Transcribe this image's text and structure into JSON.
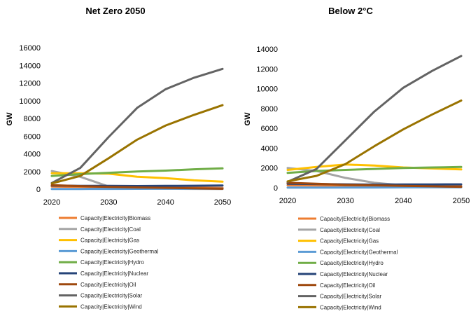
{
  "chart_data": [
    {
      "type": "line",
      "title": "Net Zero 2050",
      "xlabel": "",
      "ylabel": "GW",
      "x": [
        2020,
        2025,
        2030,
        2035,
        2040,
        2045,
        2050
      ],
      "x_ticks": [
        "2020",
        "2030",
        "2040",
        "2050"
      ],
      "ylim": [
        0,
        16000
      ],
      "y_ticks": [
        "0",
        "2000",
        "4000",
        "6000",
        "8000",
        "10000",
        "12000",
        "14000",
        "16000"
      ],
      "grid": false,
      "legend_position": "bottom",
      "series": [
        {
          "name": "Capacity|Electricity|Biomass",
          "color": "#ED7D31",
          "values": [
            300,
            250,
            200,
            180,
            170,
            160,
            150
          ]
        },
        {
          "name": "Capacity|Electricity|Coal",
          "color": "#A5A5A5",
          "values": [
            2050,
            1400,
            300,
            100,
            50,
            30,
            20
          ]
        },
        {
          "name": "Capacity|Electricity|Gas",
          "color": "#FFC000",
          "values": [
            1800,
            1800,
            1750,
            1400,
            1250,
            1000,
            850
          ]
        },
        {
          "name": "Capacity|Electricity|Geothermal",
          "color": "#5B9BD5",
          "values": [
            15,
            20,
            30,
            40,
            50,
            60,
            70
          ]
        },
        {
          "name": "Capacity|Electricity|Hydro",
          "color": "#70AD47",
          "values": [
            1500,
            1700,
            1850,
            2000,
            2100,
            2250,
            2350
          ]
        },
        {
          "name": "Capacity|Electricity|Nuclear",
          "color": "#264478",
          "values": [
            400,
            380,
            370,
            360,
            370,
            390,
            410
          ]
        },
        {
          "name": "Capacity|Electricity|Oil",
          "color": "#9E480E",
          "values": [
            450,
            350,
            250,
            200,
            150,
            100,
            50
          ]
        },
        {
          "name": "Capacity|Electricity|Solar",
          "color": "#636363",
          "values": [
            700,
            2400,
            5900,
            9200,
            11300,
            12600,
            13600
          ]
        },
        {
          "name": "Capacity|Electricity|Wind",
          "color": "#997300",
          "values": [
            650,
            1500,
            3500,
            5600,
            7200,
            8400,
            9500
          ]
        }
      ]
    },
    {
      "type": "line",
      "title": "Below 2°C",
      "xlabel": "",
      "ylabel": "GW",
      "x": [
        2020,
        2025,
        2030,
        2035,
        2040,
        2045,
        2050
      ],
      "x_ticks": [
        "2020",
        "2030",
        "2040",
        "2050"
      ],
      "ylim": [
        0,
        14000
      ],
      "y_ticks": [
        "0",
        "2000",
        "4000",
        "6000",
        "8000",
        "10000",
        "12000",
        "14000"
      ],
      "grid": false,
      "legend_position": "bottom",
      "series": [
        {
          "name": "Capacity|Electricity|Biomass",
          "color": "#ED7D31",
          "values": [
            250,
            230,
            210,
            200,
            190,
            180,
            170
          ]
        },
        {
          "name": "Capacity|Electricity|Coal",
          "color": "#A5A5A5",
          "values": [
            2000,
            1700,
            1000,
            500,
            250,
            150,
            100
          ]
        },
        {
          "name": "Capacity|Electricity|Gas",
          "color": "#FFC000",
          "values": [
            1800,
            2100,
            2350,
            2250,
            2050,
            1950,
            1850
          ]
        },
        {
          "name": "Capacity|Electricity|Geothermal",
          "color": "#5B9BD5",
          "values": [
            15,
            20,
            25,
            30,
            40,
            50,
            60
          ]
        },
        {
          "name": "Capacity|Electricity|Hydro",
          "color": "#70AD47",
          "values": [
            1500,
            1700,
            1800,
            1900,
            2000,
            2050,
            2100
          ]
        },
        {
          "name": "Capacity|Electricity|Nuclear",
          "color": "#264478",
          "values": [
            400,
            380,
            350,
            320,
            330,
            340,
            350
          ]
        },
        {
          "name": "Capacity|Electricity|Oil",
          "color": "#9E480E",
          "values": [
            500,
            400,
            300,
            250,
            200,
            150,
            100
          ]
        },
        {
          "name": "Capacity|Electricity|Solar",
          "color": "#636363",
          "values": [
            600,
            1900,
            4800,
            7700,
            10100,
            11800,
            13300
          ]
        },
        {
          "name": "Capacity|Electricity|Wind",
          "color": "#997300",
          "values": [
            650,
            1200,
            2400,
            4200,
            5900,
            7400,
            8800
          ]
        }
      ]
    }
  ]
}
